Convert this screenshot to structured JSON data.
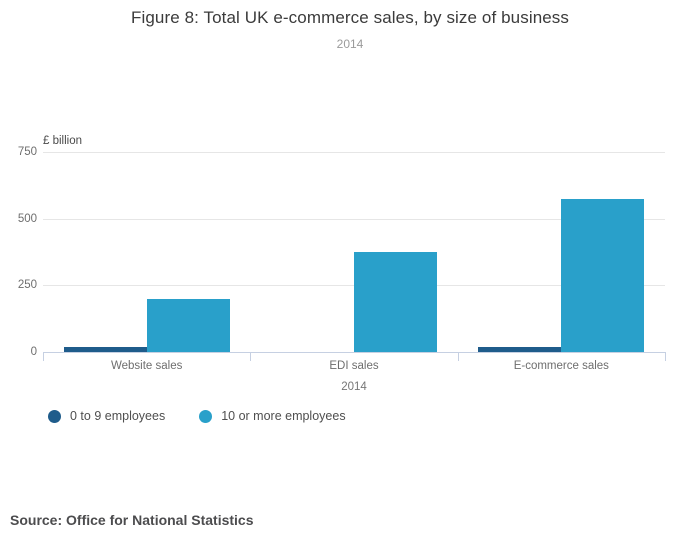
{
  "title": "Figure 8: Total UK e-commerce sales, by size of business",
  "subtitle": "2014",
  "source_note": "Source: Office for National Statistics",
  "chart_data": {
    "type": "bar",
    "title": "Figure 8: Total UK e-commerce sales, by size of business",
    "subtitle": "2014",
    "categories": [
      "Website sales",
      "EDI sales",
      "E-commerce sales"
    ],
    "series": [
      {
        "name": "0 to 9 employees",
        "color": "#1f5c8b",
        "values": [
          19,
          1,
          20
        ]
      },
      {
        "name": "10 or more employees",
        "color": "#29a0ca",
        "values": [
          198,
          375,
          573
        ]
      }
    ],
    "xlabel": "2014",
    "ylabel": "£ billion",
    "yticks": [
      0,
      250,
      500,
      750
    ],
    "ylim": [
      0,
      780
    ],
    "grid": true,
    "legend_position": "bottom-left",
    "colors": {
      "grid": "#e6e6e6",
      "axis": "#c6d0e2",
      "series_dark": "#1f5c8b",
      "series_light": "#29a0ca"
    }
  }
}
